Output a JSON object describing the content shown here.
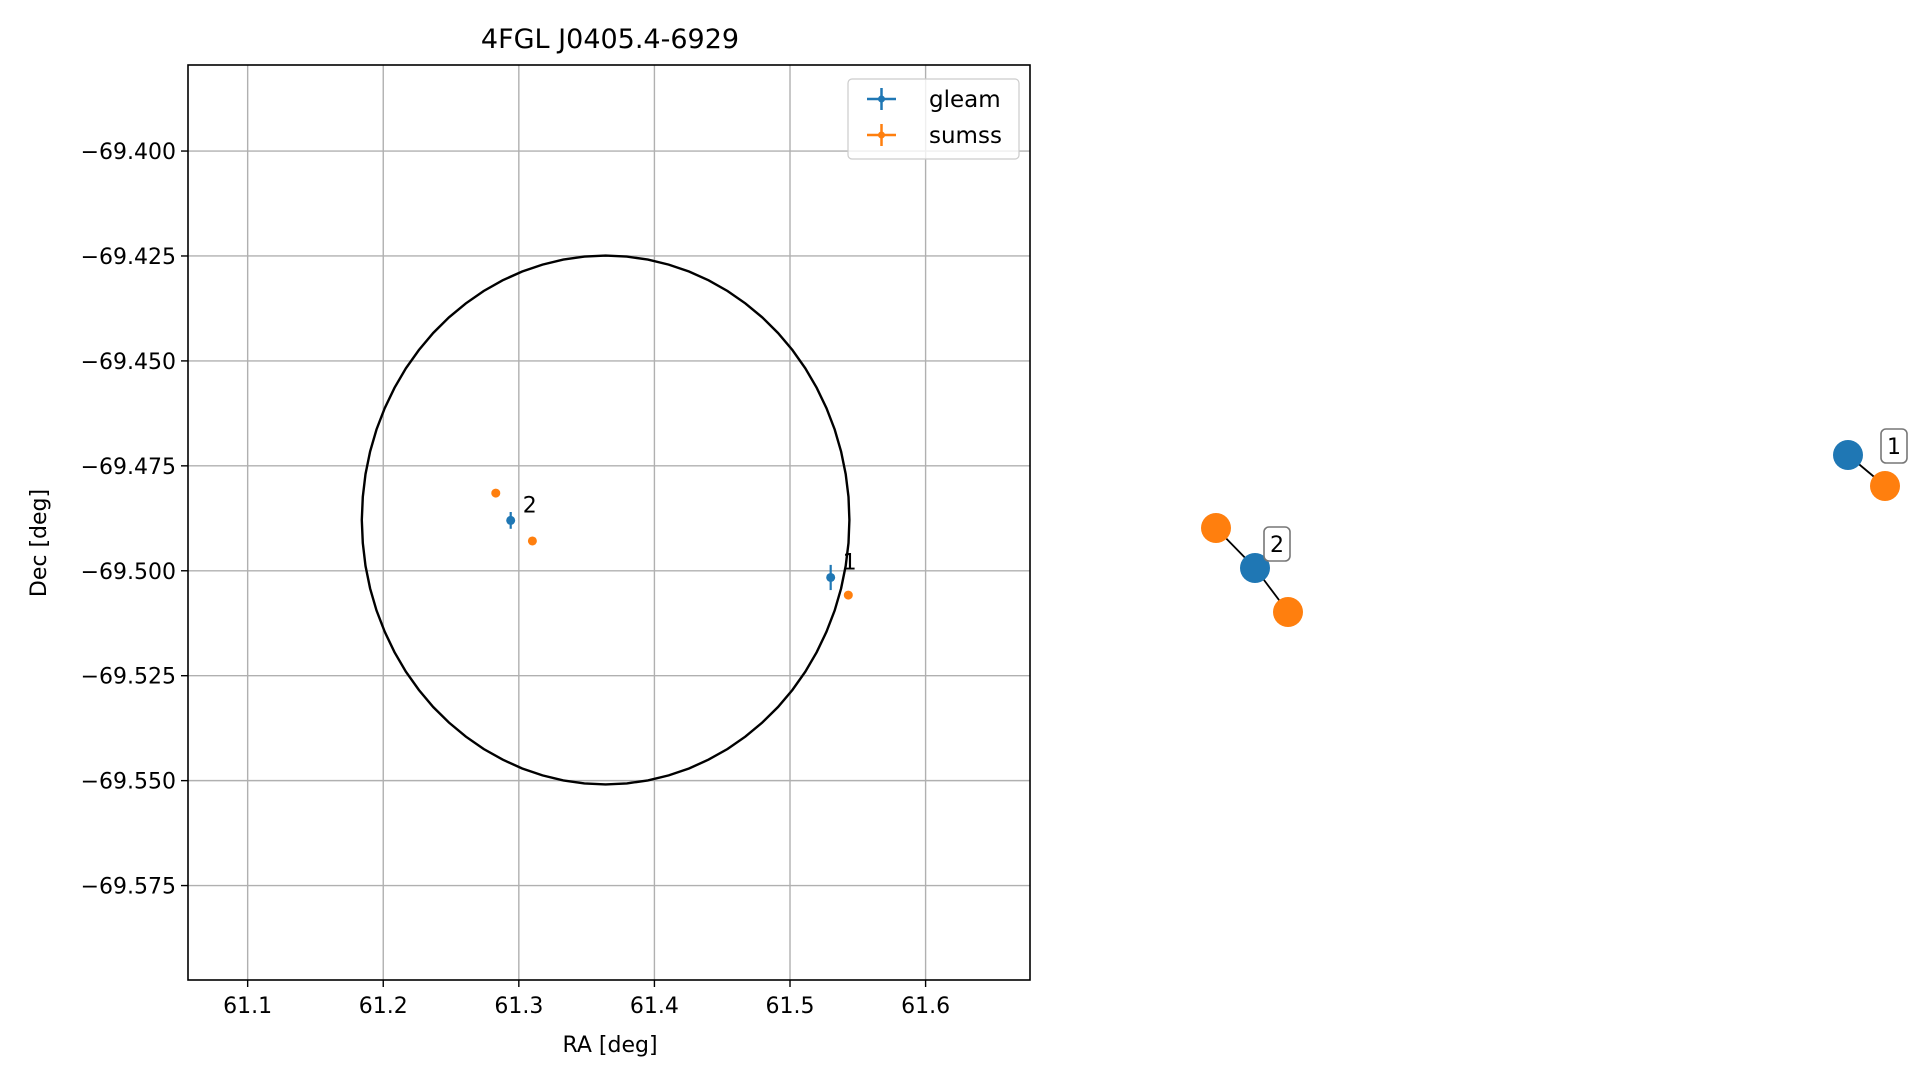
{
  "chart_data": [
    {
      "type": "scatter",
      "title": "4FGL J0405.4-6929",
      "xlabel": "RA [deg]",
      "ylabel": "Dec [deg]",
      "xlim": [
        61.056,
        61.677
      ],
      "ylim": [
        -69.5975,
        -69.3795
      ],
      "xticks": [
        61.1,
        61.2,
        61.3,
        61.4,
        61.5,
        61.6
      ],
      "xtick_labels": [
        "61.1",
        "61.2",
        "61.3",
        "61.4",
        "61.5",
        "61.6"
      ],
      "yticks": [
        -69.4,
        -69.425,
        -69.45,
        -69.475,
        -69.5,
        -69.525,
        -69.55,
        -69.575
      ],
      "ytick_labels": [
        "−69.400",
        "−69.425",
        "−69.450",
        "−69.475",
        "−69.500",
        "−69.525",
        "−69.550",
        "−69.575"
      ],
      "grid": true,
      "legend": {
        "location": "upper-right",
        "entries": [
          "gleam",
          "sumss"
        ]
      },
      "circle": {
        "center": [
          61.364,
          -69.4879
        ],
        "radius_dec": 0.063
      },
      "series": [
        {
          "name": "gleam",
          "color": "#1f77b4",
          "points": [
            {
              "x": 61.53,
              "y": -69.5016,
              "yerr": 0.003,
              "label": "1"
            },
            {
              "x": 61.294,
              "y": -69.488,
              "yerr": 0.002,
              "label": "2"
            }
          ]
        },
        {
          "name": "sumss",
          "color": "#ff7f0e",
          "points": [
            {
              "x": 61.543,
              "y": -69.5058
            },
            {
              "x": 61.283,
              "y": -69.4815
            },
            {
              "x": 61.31,
              "y": -69.4929
            }
          ]
        }
      ]
    },
    {
      "type": "network",
      "colors": {
        "gleam": "#1f77b4",
        "sumss": "#ff7f0e"
      },
      "groups": [
        {
          "label": "1",
          "nodes": [
            "gleam",
            "sumss"
          ]
        },
        {
          "label": "2",
          "nodes": [
            "sumss",
            "gleam",
            "sumss"
          ]
        }
      ]
    }
  ]
}
